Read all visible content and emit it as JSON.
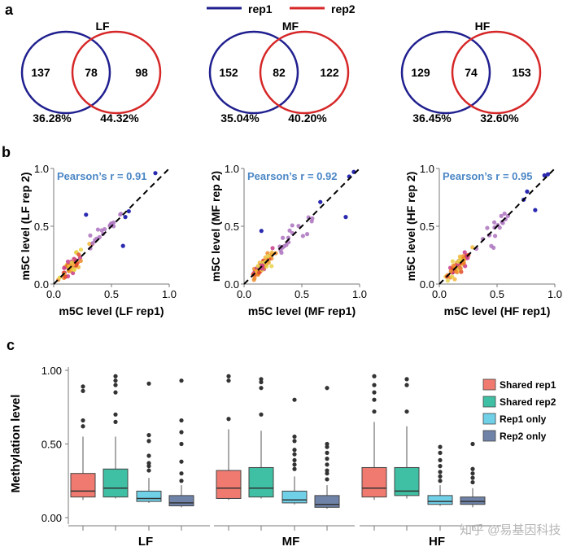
{
  "panel_labels": {
    "a": "a",
    "b": "b",
    "c": "c"
  },
  "legend_a": [
    {
      "name": "rep1",
      "color": "#1f1f8f"
    },
    {
      "name": "rep2",
      "color": "#d62728"
    }
  ],
  "colors": {
    "rep1": "#1f1f8f",
    "rep2": "#d62728",
    "pearson": "#4a86c5",
    "dash": "#000000",
    "axis": "#7a7a7a"
  },
  "chart_data": [
    {
      "type": "venn",
      "panel": "a",
      "sets": [
        {
          "title": "LF",
          "left_only": "137",
          "shared": "78",
          "right_only": "98",
          "left_pct": "36.28%",
          "right_pct": "44.32%"
        },
        {
          "title": "MF",
          "left_only": "152",
          "shared": "82",
          "right_only": "122",
          "left_pct": "35.04%",
          "right_pct": "40.20%"
        },
        {
          "title": "HF",
          "left_only": "129",
          "shared": "74",
          "right_only": "153",
          "left_pct": "36.45%",
          "right_pct": "32.60%"
        }
      ]
    },
    {
      "type": "scatter",
      "panel": "b",
      "xlim": [
        0,
        1
      ],
      "ylim": [
        0,
        1
      ],
      "ticks": [
        "0.0",
        "0.5",
        "1.0"
      ],
      "tick_values": [
        0,
        0.5,
        1
      ],
      "plots": [
        {
          "id": "LF",
          "xlabel": "m5C level (LF rep1)",
          "ylabel": "m5C level (LF rep 2)",
          "annotation": "Pearson’s r = 0.91",
          "blue": [
            [
              0.88,
              0.96
            ],
            [
              0.65,
              0.63
            ],
            [
              0.62,
              0.58
            ],
            [
              0.28,
              0.6
            ],
            [
              0.6,
              0.33
            ]
          ]
        },
        {
          "id": "MF",
          "xlabel": "m5C level (MF rep1)",
          "ylabel": "m5C level (MF rep 2)",
          "annotation": "Pearson’s r = 0.92",
          "blue": [
            [
              0.95,
              0.97
            ],
            [
              0.91,
              0.93
            ],
            [
              0.66,
              0.71
            ],
            [
              0.88,
              0.58
            ],
            [
              0.15,
              0.46
            ]
          ]
        },
        {
          "id": "HF",
          "xlabel": "m5C level (HF rep1)",
          "ylabel": "m5C level (HF rep 2)",
          "annotation": "Pearson’s r = 0.95",
          "blue": [
            [
              0.94,
              0.95
            ],
            [
              0.91,
              0.94
            ],
            [
              0.76,
              0.8
            ],
            [
              0.73,
              0.73
            ],
            [
              0.83,
              0.64
            ]
          ]
        }
      ]
    },
    {
      "type": "box",
      "panel": "c",
      "ylabel": "Methylation level",
      "ylim": [
        0,
        1.0
      ],
      "yticks": [
        0.0,
        0.5,
        1.0
      ],
      "ytick_labels": [
        "0.00",
        "0.50",
        "1.00"
      ],
      "groups": [
        "LF",
        "MF",
        "HF"
      ],
      "series": [
        {
          "name": "Shared rep1",
          "color": "#f07a6f"
        },
        {
          "name": "Shared rep2",
          "color": "#3fbfa3"
        },
        {
          "name": "Rep1 only",
          "color": "#6fd0e8"
        },
        {
          "name": "Rep2 only",
          "color": "#6f82a8"
        }
      ],
      "boxes": [
        {
          "group": "LF",
          "series": 0,
          "whislo": 0.12,
          "q1": 0.14,
          "med": 0.18,
          "q3": 0.3,
          "whishi": 0.55,
          "fliers": [
            0.62,
            0.66,
            0.86,
            0.89
          ]
        },
        {
          "group": "LF",
          "series": 1,
          "whislo": 0.13,
          "q1": 0.14,
          "med": 0.2,
          "q3": 0.33,
          "whishi": 0.55,
          "fliers": [
            0.65,
            0.7,
            0.85,
            0.9,
            0.93,
            0.96
          ]
        },
        {
          "group": "LF",
          "series": 2,
          "whislo": 0.1,
          "q1": 0.11,
          "med": 0.13,
          "q3": 0.18,
          "whishi": 0.27,
          "fliers": [
            0.32,
            0.35,
            0.37,
            0.42,
            0.52,
            0.56,
            0.91
          ]
        },
        {
          "group": "LF",
          "series": 3,
          "whislo": 0.07,
          "q1": 0.08,
          "med": 0.1,
          "q3": 0.15,
          "whishi": 0.22,
          "fliers": [
            0.25,
            0.3,
            0.38,
            0.5,
            0.58,
            0.66,
            0.93
          ]
        },
        {
          "group": "MF",
          "series": 0,
          "whislo": 0.12,
          "q1": 0.13,
          "med": 0.2,
          "q3": 0.32,
          "whishi": 0.6,
          "fliers": [
            0.67,
            0.93,
            0.96
          ]
        },
        {
          "group": "MF",
          "series": 1,
          "whislo": 0.13,
          "q1": 0.14,
          "med": 0.2,
          "q3": 0.34,
          "whishi": 0.59,
          "fliers": [
            0.7,
            0.88,
            0.92,
            0.94
          ]
        },
        {
          "group": "MF",
          "series": 2,
          "whislo": 0.09,
          "q1": 0.1,
          "med": 0.12,
          "q3": 0.18,
          "whishi": 0.28,
          "fliers": [
            0.33,
            0.36,
            0.39,
            0.43,
            0.46,
            0.52,
            0.55,
            0.8
          ]
        },
        {
          "group": "MF",
          "series": 3,
          "whislo": 0.06,
          "q1": 0.07,
          "med": 0.09,
          "q3": 0.15,
          "whishi": 0.22,
          "fliers": [
            0.26,
            0.3,
            0.32,
            0.36,
            0.4,
            0.44,
            0.48,
            0.5,
            0.88
          ]
        },
        {
          "group": "HF",
          "series": 0,
          "whislo": 0.12,
          "q1": 0.14,
          "med": 0.2,
          "q3": 0.34,
          "whishi": 0.65,
          "fliers": [
            0.72,
            0.8,
            0.85,
            0.9,
            0.96
          ]
        },
        {
          "group": "HF",
          "series": 1,
          "whislo": 0.13,
          "q1": 0.15,
          "med": 0.18,
          "q3": 0.34,
          "whishi": 0.62,
          "fliers": [
            0.72,
            0.9,
            0.94
          ]
        },
        {
          "group": "HF",
          "series": 2,
          "whislo": 0.08,
          "q1": 0.09,
          "med": 0.11,
          "q3": 0.15,
          "whishi": 0.22,
          "fliers": [
            0.25,
            0.28,
            0.31,
            0.35,
            0.39,
            0.44,
            0.48
          ]
        },
        {
          "group": "HF",
          "series": 3,
          "whislo": 0.07,
          "q1": 0.09,
          "med": 0.11,
          "q3": 0.14,
          "whishi": 0.2,
          "fliers": [
            0.24,
            0.27,
            0.3,
            0.33,
            0.5
          ]
        }
      ]
    }
  ],
  "watermark": "知乎 @易基因科技"
}
